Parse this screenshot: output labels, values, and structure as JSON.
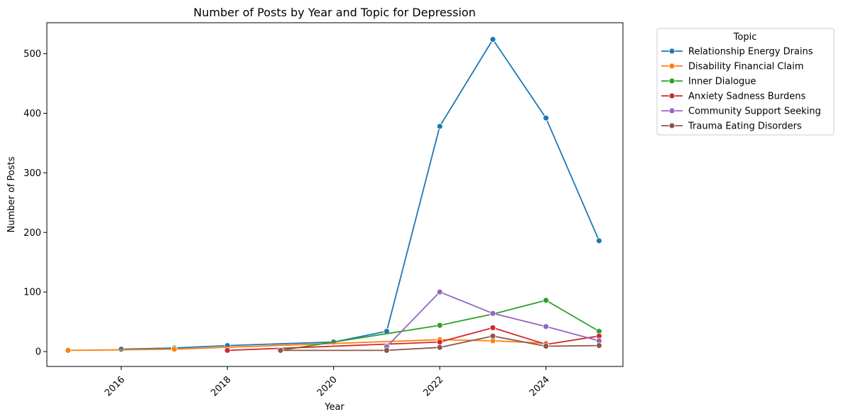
{
  "chart_data": {
    "type": "line",
    "title": "Number of Posts by Year and Topic for Depression",
    "xlabel": "Year",
    "ylabel": "Number of Posts",
    "xlim": [
      2014.6,
      2025.45
    ],
    "ylim": [
      -25,
      552
    ],
    "xticks": [
      2016,
      2018,
      2020,
      2022,
      2024
    ],
    "yticks": [
      0,
      100,
      200,
      300,
      400,
      500
    ],
    "grid": false,
    "legend": {
      "title": "Topic",
      "placement": "outside-top-right"
    },
    "series": [
      {
        "name": "Relationship Energy Drains",
        "color": "#1f77b4",
        "points": [
          [
            2016,
            4
          ],
          [
            2017,
            6
          ],
          [
            2018,
            10
          ],
          [
            2020,
            16
          ],
          [
            2021,
            34
          ],
          [
            2022,
            378
          ],
          [
            2023,
            524
          ],
          [
            2024,
            392
          ],
          [
            2025,
            186
          ]
        ]
      },
      {
        "name": "Disability Financial Claim",
        "color": "#ff7f0e",
        "points": [
          [
            2015,
            2
          ],
          [
            2017,
            4
          ],
          [
            2022,
            20
          ],
          [
            2023,
            18
          ],
          [
            2024,
            14
          ]
        ]
      },
      {
        "name": "Inner Dialogue",
        "color": "#2ca02c",
        "points": [
          [
            2019,
            2
          ],
          [
            2022,
            44
          ],
          [
            2023,
            63
          ],
          [
            2024,
            86
          ],
          [
            2025,
            34
          ]
        ]
      },
      {
        "name": "Anxiety Sadness Burdens",
        "color": "#d62728",
        "points": [
          [
            2018,
            2
          ],
          [
            2022,
            16
          ],
          [
            2023,
            40
          ],
          [
            2024,
            12
          ],
          [
            2025,
            26
          ]
        ]
      },
      {
        "name": "Community Support Seeking",
        "color": "#9467bd",
        "points": [
          [
            2021,
            8
          ],
          [
            2022,
            100
          ],
          [
            2023,
            64
          ],
          [
            2024,
            42
          ],
          [
            2025,
            18
          ]
        ]
      },
      {
        "name": "Trauma Eating Disorders",
        "color": "#8c564b",
        "points": [
          [
            2019,
            2
          ],
          [
            2021,
            2
          ],
          [
            2022,
            7
          ],
          [
            2023,
            26
          ],
          [
            2024,
            9
          ],
          [
            2025,
            10
          ]
        ]
      }
    ]
  }
}
